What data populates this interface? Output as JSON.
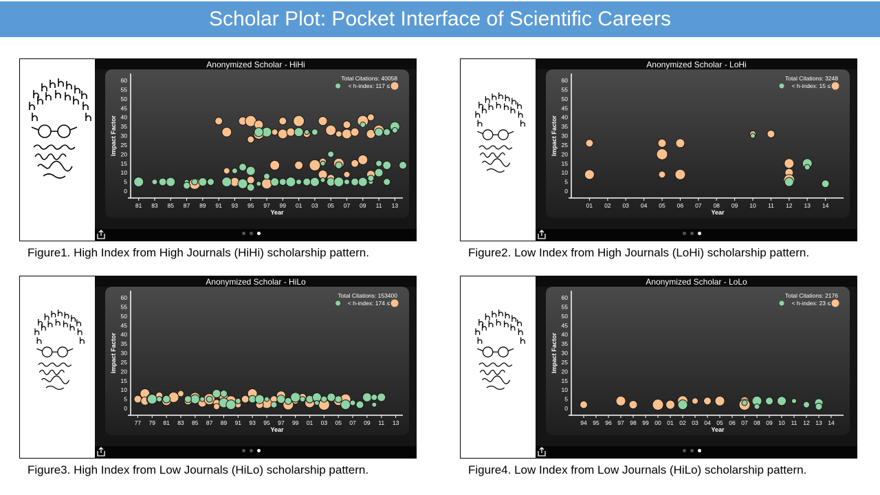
{
  "header": {
    "title": "Scholar Plot: Pocket Interface of Scientific Careers"
  },
  "colors": {
    "high": "#fbc08d",
    "low": "#8fd4a4",
    "frame": "#0b0b0b",
    "plot": "#2e2e2e"
  },
  "captions": [
    "Figure1. High Index from High Journals (HiHi) scholarship pattern.",
    "Figure2. Low Index from High Journals (LoHi) scholarship pattern.",
    "Figure3. High Index from Low Journals (HiLo) scholarship pattern.",
    "Figure4. Low Index from Low Journals (HiLo) scholarship pattern."
  ],
  "panels": [
    {
      "title": "Anonymized Scholar - HiHi",
      "citations": "Total Citations: 40058",
      "hindex_left": "< h-index: 117 ≤",
      "ylabel": "Impact Factor",
      "xlabel": "Year"
    },
    {
      "title": "Anonymized Scholar - LoHi",
      "citations": "Total Citations: 3248",
      "hindex_left": "< h-index: 15 ≤",
      "ylabel": "Impact Factor",
      "xlabel": "Year"
    },
    {
      "title": "Anonymized Scholar - HiLo",
      "citations": "Total Citations: 153400",
      "hindex_left": "< h-index: 174 ≤",
      "ylabel": "Impact Factor",
      "xlabel": "Year"
    },
    {
      "title": "Anonymized Scholar - LoLo",
      "citations": "Total Citations: 2176",
      "hindex_left": "< h-index: 23 ≤",
      "ylabel": "Impact Factor",
      "xlabel": "Year"
    }
  ],
  "chart_data": [
    {
      "type": "scatter",
      "title": "Anonymized Scholar - HiHi",
      "xlabel": "Year",
      "ylabel": "Impact Factor",
      "ylim": [
        0,
        60
      ],
      "yticks": [
        0,
        5,
        10,
        15,
        20,
        25,
        30,
        35,
        40,
        45,
        50,
        55,
        60
      ],
      "xlim": [
        1980,
        2014
      ],
      "xtick_labels": [
        "81",
        "83",
        "85",
        "87",
        "89",
        "91",
        "93",
        "95",
        "97",
        "99",
        "01",
        "03",
        "05",
        "07",
        "09",
        "11",
        "13"
      ],
      "xtick_years": [
        1981,
        1983,
        1985,
        1987,
        1989,
        1991,
        1993,
        1995,
        1997,
        1999,
        2001,
        2003,
        2005,
        2007,
        2009,
        2011,
        2013
      ],
      "series": [
        {
          "values": [
            [
              1991,
              38
            ],
            [
              1992,
              32
            ],
            [
              1994,
              38
            ],
            [
              1995,
              38
            ],
            [
              1995,
              28
            ],
            [
              1996,
              36
            ],
            [
              1996,
              31
            ],
            [
              1998,
              32
            ],
            [
              1999,
              38
            ],
            [
              1999,
              31
            ],
            [
              2000,
              32
            ],
            [
              2001,
              38
            ],
            [
              2002,
              31
            ],
            [
              2004,
              38
            ],
            [
              2005,
              33
            ],
            [
              2006,
              31
            ],
            [
              2007,
              36
            ],
            [
              2007,
              31
            ],
            [
              2008,
              32
            ],
            [
              2009,
              38
            ],
            [
              2010,
              40
            ],
            [
              2010,
              31
            ],
            [
              2011,
              33
            ],
            [
              1992,
              11
            ],
            [
              1995,
              6
            ],
            [
              1998,
              14
            ],
            [
              2001,
              14
            ],
            [
              2003,
              14
            ],
            [
              2004,
              16
            ],
            [
              2004,
              9
            ],
            [
              2006,
              15
            ],
            [
              2007,
              9
            ],
            [
              2008,
              15
            ],
            [
              2009,
              17
            ],
            [
              2010,
              9
            ],
            [
              1988,
              4
            ],
            [
              1990,
              5
            ],
            [
              1993,
              5
            ],
            [
              1997,
              4
            ],
            [
              2003,
              4
            ],
            [
              2005,
              7
            ]
          ]
        },
        {
          "values": [
            [
              1981,
              5
            ],
            [
              1983,
              5
            ],
            [
              1984,
              5
            ],
            [
              1985,
              5
            ],
            [
              1987,
              5
            ],
            [
              1988,
              5
            ],
            [
              1989,
              5
            ],
            [
              1990,
              5
            ],
            [
              1992,
              5
            ],
            [
              1993,
              11
            ],
            [
              1994,
              13
            ],
            [
              1995,
              11
            ],
            [
              1996,
              4
            ],
            [
              1997,
              8
            ],
            [
              1998,
              5
            ],
            [
              1999,
              5
            ],
            [
              2000,
              5
            ],
            [
              2001,
              5
            ],
            [
              2002,
              5
            ],
            [
              2003,
              5
            ],
            [
              2004,
              6
            ],
            [
              2005,
              20
            ],
            [
              2005,
              5
            ],
            [
              2006,
              14
            ],
            [
              2006,
              5
            ],
            [
              2007,
              5
            ],
            [
              2008,
              5
            ],
            [
              2009,
              5
            ],
            [
              2010,
              5
            ],
            [
              2011,
              15
            ],
            [
              2012,
              14
            ],
            [
              2012,
              5
            ],
            [
              2013,
              35
            ],
            [
              2013,
              33
            ],
            [
              2014,
              14
            ],
            [
              2001,
              32
            ],
            [
              2002,
              32
            ],
            [
              2003,
              32
            ],
            [
              2011,
              32
            ],
            [
              2012,
              32
            ],
            [
              1997,
              32
            ],
            [
              2009,
              36
            ],
            [
              1995,
              2
            ],
            [
              1996,
              32
            ],
            [
              2004,
              15
            ],
            [
              2010,
              7
            ],
            [
              2011,
              10
            ],
            [
              1987,
              3
            ],
            [
              1994,
              4
            ]
          ]
        }
      ]
    },
    {
      "type": "scatter",
      "title": "Anonymized Scholar - LoHi",
      "xlabel": "Year",
      "ylabel": "Impact Factor",
      "ylim": [
        0,
        60
      ],
      "yticks": [
        0,
        5,
        10,
        15,
        20,
        25,
        30,
        35,
        40,
        45,
        50,
        55,
        60
      ],
      "xlim": [
        2000,
        2015
      ],
      "xtick_labels": [
        "01",
        "02",
        "03",
        "04",
        "05",
        "06",
        "07",
        "08",
        "09",
        "10",
        "11",
        "12",
        "13",
        "14"
      ],
      "xtick_years": [
        2001,
        2002,
        2003,
        2004,
        2005,
        2006,
        2007,
        2008,
        2009,
        2010,
        2011,
        2012,
        2013,
        2014
      ],
      "series": [
        {
          "values": [
            [
              2001,
              26
            ],
            [
              2001,
              9
            ],
            [
              2005,
              26
            ],
            [
              2005,
              20
            ],
            [
              2005,
              9
            ],
            [
              2006,
              26
            ],
            [
              2006,
              9
            ],
            [
              2010,
              31
            ],
            [
              2011,
              31
            ],
            [
              2012,
              15
            ],
            [
              2012,
              10
            ],
            [
              2012,
              6
            ]
          ]
        },
        {
          "values": [
            [
              2013,
              15
            ],
            [
              2013,
              13
            ],
            [
              2014,
              4
            ],
            [
              2012,
              5
            ],
            [
              2010,
              30
            ]
          ]
        }
      ]
    },
    {
      "type": "scatter",
      "title": "Anonymized Scholar - HiLo",
      "xlabel": "Year",
      "ylabel": "Impact Factor",
      "ylim": [
        0,
        60
      ],
      "yticks": [
        0,
        5,
        10,
        15,
        20,
        25,
        30,
        35,
        40,
        45,
        50,
        55,
        60
      ],
      "xlim": [
        1976,
        2014
      ],
      "xtick_labels": [
        "77",
        "79",
        "81",
        "83",
        "85",
        "87",
        "89",
        "91",
        "93",
        "95",
        "97",
        "99",
        "01",
        "03",
        "05",
        "07",
        "09",
        "11",
        "13"
      ],
      "xtick_years": [
        1977,
        1979,
        1981,
        1983,
        1985,
        1987,
        1989,
        1991,
        1993,
        1995,
        1997,
        1999,
        2001,
        2003,
        2005,
        2007,
        2009,
        2011,
        2013
      ],
      "series": [
        {
          "values": [
            [
              1977,
              5
            ],
            [
              1978,
              8
            ],
            [
              1978,
              4
            ],
            [
              1979,
              5
            ],
            [
              1980,
              7
            ],
            [
              1981,
              4
            ],
            [
              1982,
              6
            ],
            [
              1983,
              8
            ],
            [
              1984,
              4
            ],
            [
              1985,
              6
            ],
            [
              1986,
              3
            ],
            [
              1987,
              5
            ],
            [
              1988,
              3
            ],
            [
              1989,
              6
            ],
            [
              1990,
              4
            ],
            [
              1991,
              2
            ],
            [
              1992,
              5
            ],
            [
              1993,
              8
            ],
            [
              1994,
              4
            ],
            [
              1995,
              3
            ],
            [
              1996,
              5
            ],
            [
              1997,
              7
            ],
            [
              1998,
              2
            ],
            [
              1999,
              4
            ],
            [
              2000,
              6
            ],
            [
              2001,
              3
            ],
            [
              2002,
              5
            ],
            [
              2003,
              2
            ],
            [
              2004,
              6
            ],
            [
              2005,
              4
            ],
            [
              2006,
              5
            ],
            [
              1988,
              1
            ],
            [
              1994,
              2
            ]
          ]
        },
        {
          "values": [
            [
              1979,
              5
            ],
            [
              1980,
              5
            ],
            [
              1981,
              5
            ],
            [
              1985,
              5
            ],
            [
              1986,
              5
            ],
            [
              1987,
              5
            ],
            [
              1988,
              8
            ],
            [
              1989,
              8
            ],
            [
              1989,
              3
            ],
            [
              1991,
              4
            ],
            [
              1993,
              5
            ],
            [
              1994,
              5
            ],
            [
              1995,
              5
            ],
            [
              1996,
              2
            ],
            [
              1997,
              5
            ],
            [
              1998,
              4
            ],
            [
              1999,
              6
            ],
            [
              2000,
              5
            ],
            [
              2001,
              5
            ],
            [
              2002,
              6
            ],
            [
              2002,
              3
            ],
            [
              2003,
              5
            ],
            [
              2004,
              6
            ],
            [
              2005,
              5
            ],
            [
              2006,
              2
            ],
            [
              2007,
              3
            ],
            [
              2008,
              2
            ],
            [
              2009,
              6
            ],
            [
              2010,
              2
            ],
            [
              2010,
              6
            ],
            [
              2011,
              6
            ],
            [
              1984,
              5
            ],
            [
              1990,
              2
            ]
          ]
        }
      ]
    },
    {
      "type": "scatter",
      "title": "Anonymized Scholar - LoLo",
      "xlabel": "Year",
      "ylabel": "Impact Factor",
      "ylim": [
        0,
        60
      ],
      "yticks": [
        0,
        5,
        10,
        15,
        20,
        25,
        30,
        35,
        40,
        45,
        50,
        55,
        60
      ],
      "xlim": [
        1993,
        2015
      ],
      "xtick_labels": [
        "94",
        "95",
        "96",
        "97",
        "98",
        "99",
        "00",
        "01",
        "02",
        "03",
        "04",
        "05",
        "06",
        "07",
        "08",
        "09",
        "10",
        "11",
        "12",
        "13",
        "14"
      ],
      "xtick_years": [
        1994,
        1995,
        1996,
        1997,
        1998,
        1999,
        2000,
        2001,
        2002,
        2003,
        2004,
        2005,
        2006,
        2007,
        2008,
        2009,
        2010,
        2011,
        2012,
        2013,
        2014
      ],
      "series": [
        {
          "values": [
            [
              1994,
              2
            ],
            [
              1997,
              4
            ],
            [
              1998,
              2
            ],
            [
              2000,
              2
            ],
            [
              2001,
              3
            ],
            [
              2001,
              2
            ],
            [
              2002,
              4
            ],
            [
              2003,
              4
            ],
            [
              2004,
              4
            ],
            [
              2005,
              4
            ],
            [
              2007,
              4
            ],
            [
              2007,
              2
            ]
          ]
        },
        {
          "values": [
            [
              2008,
              4
            ],
            [
              2008,
              1
            ],
            [
              2009,
              4
            ],
            [
              2010,
              4
            ],
            [
              2011,
              4
            ],
            [
              2012,
              2
            ],
            [
              2013,
              3
            ],
            [
              2013,
              1
            ],
            [
              2002,
              2
            ],
            [
              2007,
              3
            ]
          ]
        }
      ]
    }
  ]
}
